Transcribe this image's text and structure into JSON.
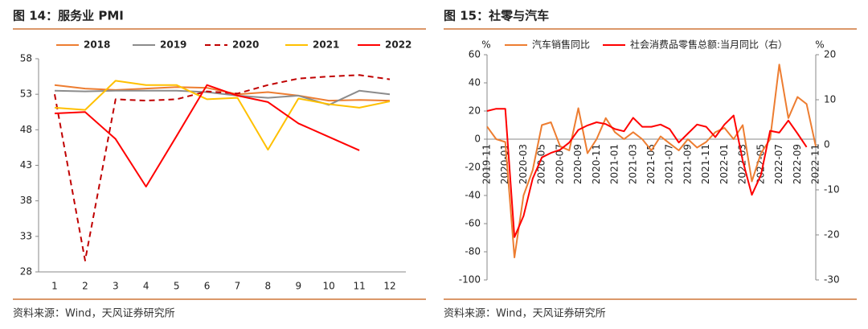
{
  "chart_data": [
    {
      "type": "line",
      "title": "图 14：服务业 PMI",
      "source": "资料来源：Wind，天风证券研究所",
      "categories": [
        "1",
        "2",
        "3",
        "4",
        "5",
        "6",
        "7",
        "8",
        "9",
        "10",
        "11",
        "12"
      ],
      "ylim": [
        28,
        58
      ],
      "yticks": [
        28,
        33,
        38,
        43,
        48,
        53,
        58
      ],
      "series": [
        {
          "name": "2018",
          "color": "#ED7D31",
          "line_style": "solid",
          "values": [
            54.3,
            53.8,
            53.6,
            53.8,
            54.0,
            53.9,
            53.0,
            53.3,
            52.8,
            52.1,
            52.2,
            52.1
          ]
        },
        {
          "name": "2019",
          "color": "#8C8C8C",
          "line_style": "solid",
          "values": [
            53.5,
            53.4,
            53.5,
            53.5,
            53.5,
            53.3,
            52.8,
            52.5,
            52.8,
            51.5,
            53.5,
            53.0
          ]
        },
        {
          "name": "2020",
          "color": "#C00000",
          "line_style": "dashed",
          "values": [
            53.0,
            29.6,
            52.3,
            52.1,
            52.3,
            53.4,
            53.1,
            54.3,
            55.2,
            55.5,
            55.7,
            55.1
          ]
        },
        {
          "name": "2021",
          "color": "#FFC000",
          "line_style": "solid",
          "values": [
            51.1,
            50.8,
            54.9,
            54.3,
            54.3,
            52.3,
            52.5,
            45.2,
            52.4,
            51.6,
            51.1,
            52.0
          ]
        },
        {
          "name": "2022",
          "color": "#FF0000",
          "line_style": "solid",
          "values": [
            50.3,
            50.5,
            46.7,
            40.0,
            47.1,
            54.3,
            52.8,
            51.9,
            48.9,
            47.0,
            45.1,
            null
          ]
        }
      ]
    },
    {
      "type": "line",
      "title": "图 15：社零与汽车",
      "source": "资料来源：Wind，天风证券研究所",
      "y_label": "%",
      "y2_label": "%",
      "categories": [
        "2019-11",
        null,
        "2020-01",
        null,
        "2020-03",
        null,
        "2020-05",
        null,
        "2020-07",
        null,
        "2020-09",
        null,
        "2020-11",
        null,
        "2021-01",
        null,
        "2021-03",
        null,
        "2021-05",
        null,
        "2021-07",
        null,
        "2021-09",
        null,
        "2021-11",
        null,
        "2022-01",
        null,
        "2022-03",
        null,
        "2022-05",
        null,
        "2022-07",
        null,
        "2022-09",
        null,
        "2022-11"
      ],
      "ylim": [
        -100,
        60
      ],
      "yticks": [
        -100,
        -80,
        -60,
        -40,
        -20,
        0,
        20,
        40,
        60
      ],
      "y2lim": [
        -30,
        20
      ],
      "y2ticks": [
        -30,
        -20,
        -10,
        0,
        10,
        20
      ],
      "series": [
        {
          "name": "汽车销售同比",
          "color": "#ED7D31",
          "values": [
            9,
            0,
            -2,
            -84,
            -40,
            -22,
            10,
            12,
            -5,
            -8,
            22,
            -10,
            0,
            15,
            5,
            0,
            5,
            0,
            -8,
            2,
            -3,
            -8,
            0,
            -6,
            -2,
            5,
            8,
            0,
            10,
            -30,
            -10,
            0,
            53,
            15,
            30,
            25,
            -5
          ]
        },
        {
          "name": "社会消费品零售总额:当月同比（右）",
          "color": "#FF0000",
          "axis": "y2",
          "values": [
            7.5,
            8.0,
            8.0,
            -20.5,
            -15.8,
            -7.5,
            -2.8,
            -1.8,
            -1.1,
            0.5,
            3.3,
            4.3,
            5.0,
            4.6,
            3.5,
            3.0,
            6.0,
            4.0,
            4.0,
            4.5,
            3.5,
            0.5,
            2.5,
            4.5,
            4.0,
            1.7,
            4.5,
            6.5,
            -3.5,
            -11.1,
            -6.7,
            3.1,
            2.7,
            5.4,
            2.5,
            -0.5,
            null
          ]
        }
      ]
    }
  ]
}
